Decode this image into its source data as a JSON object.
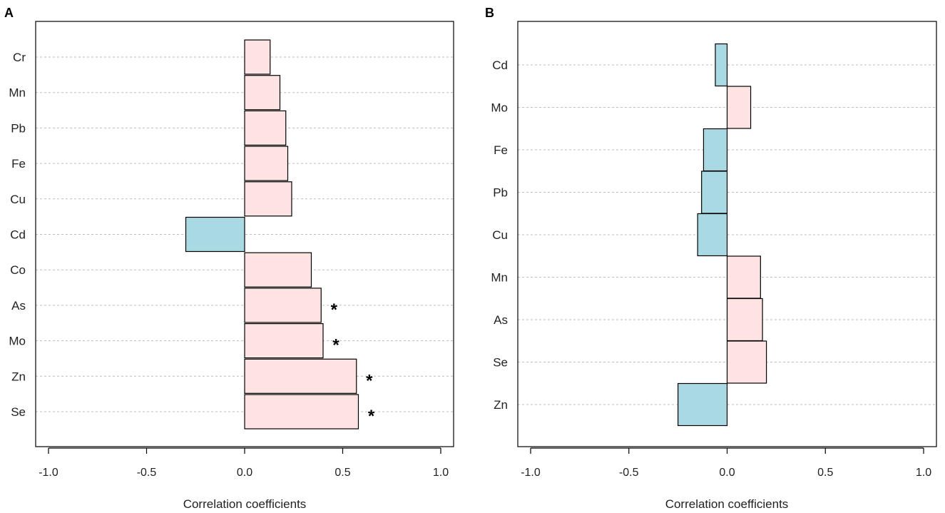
{
  "colors": {
    "positive": "#fde3e1",
    "negative": "#a9dae4"
  },
  "chart_data": [
    {
      "type": "bar",
      "orientation": "horizontal",
      "panel": "A",
      "categories": [
        "Cr",
        "Mn",
        "Pb",
        "Fe",
        "Cu",
        "Cd",
        "Co",
        "As",
        "Mo",
        "Zn",
        "Se"
      ],
      "values": [
        0.13,
        0.18,
        0.21,
        0.22,
        0.24,
        -0.3,
        0.34,
        0.39,
        0.4,
        0.57,
        0.58
      ],
      "significant": [
        "",
        "",
        "",
        "",
        "",
        "",
        "",
        "*",
        "*",
        "*",
        "*"
      ],
      "xlabel": "Correlation coefficients",
      "xlim": [
        -1.0,
        1.0
      ],
      "xticks": [
        -1.0,
        -0.5,
        0.0,
        0.5,
        1.0
      ],
      "xtick_labels": [
        "-1.0",
        "-0.5",
        "0.0",
        "0.5",
        "1.0"
      ],
      "grid": true
    },
    {
      "type": "bar",
      "orientation": "horizontal",
      "panel": "B",
      "categories": [
        "Cd",
        "Mo",
        "Fe",
        "Pb",
        "Cu",
        "Mn",
        "As",
        "Se",
        "Zn"
      ],
      "values": [
        -0.06,
        0.12,
        -0.12,
        -0.13,
        -0.15,
        0.17,
        0.18,
        0.2,
        -0.25
      ],
      "significant": [
        "",
        "",
        "",
        "",
        "",
        "",
        "",
        "",
        ""
      ],
      "xlabel": "Correlation coefficients",
      "xlim": [
        -1.0,
        1.0
      ],
      "xticks": [
        -1.0,
        -0.5,
        0.0,
        0.5,
        1.0
      ],
      "xtick_labels": [
        "-1.0",
        "-0.5",
        "0.0",
        "0.5",
        "1.0"
      ],
      "grid": true
    }
  ]
}
